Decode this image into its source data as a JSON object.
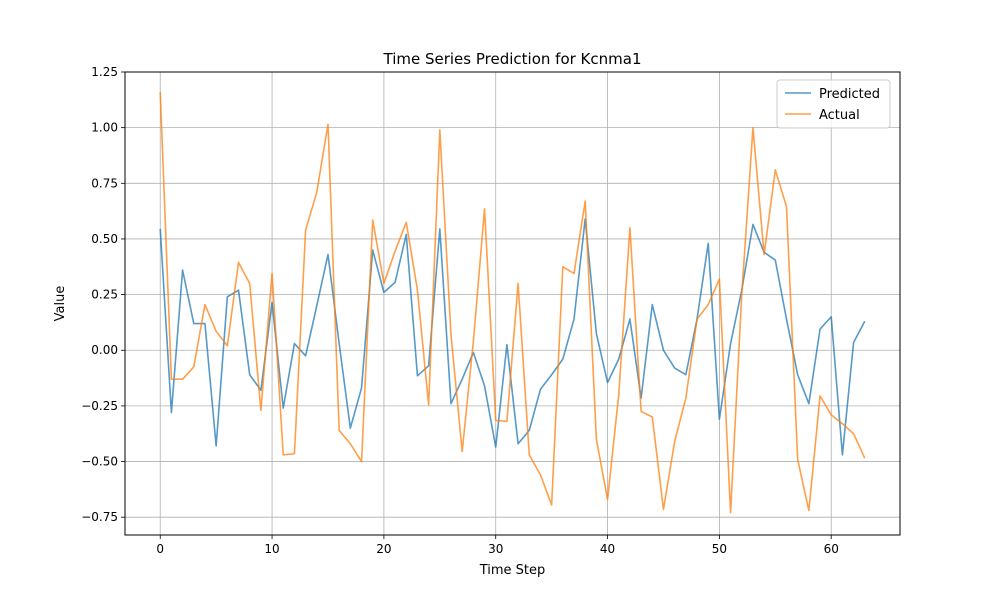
{
  "chart_data": {
    "type": "line",
    "title": "Time Series Prediction for Kcnma1",
    "xlabel": "Time Step",
    "ylabel": "Value",
    "xlim": [
      -3.15,
      66.15
    ],
    "ylim": [
      -0.83,
      1.25
    ],
    "xticks": [
      0,
      10,
      20,
      30,
      40,
      50,
      60
    ],
    "yticks": [
      -0.75,
      -0.5,
      -0.25,
      0.0,
      0.25,
      0.5,
      0.75,
      1.0,
      1.25
    ],
    "ytick_labels": [
      "−0.75",
      "−0.50",
      "−0.25",
      "0.00",
      "0.25",
      "0.50",
      "0.75",
      "1.00",
      "1.25"
    ],
    "grid": true,
    "legend": "top-right",
    "series": [
      {
        "name": "Predicted",
        "color": "#1f77b4",
        "values": [
          0.545,
          -0.28,
          0.36,
          0.12,
          0.12,
          -0.43,
          0.24,
          0.27,
          -0.11,
          -0.18,
          0.215,
          -0.26,
          0.03,
          -0.025,
          0.2,
          0.43,
          0.03,
          -0.35,
          -0.17,
          0.45,
          0.26,
          0.305,
          0.52,
          -0.115,
          -0.07,
          0.545,
          -0.24,
          -0.13,
          -0.01,
          -0.16,
          -0.435,
          0.025,
          -0.42,
          -0.36,
          -0.175,
          -0.11,
          -0.04,
          0.14,
          0.59,
          0.075,
          -0.145,
          -0.04,
          0.14,
          -0.215,
          0.205,
          0.0,
          -0.08,
          -0.11,
          0.14,
          0.48,
          -0.31,
          0.03,
          0.27,
          0.565,
          0.44,
          0.405,
          0.14,
          -0.11,
          -0.24,
          0.095,
          0.15,
          -0.47,
          0.035,
          0.13
        ]
      },
      {
        "name": "Actual",
        "color": "#ff7f0e",
        "values": [
          1.16,
          -0.13,
          -0.13,
          -0.075,
          0.205,
          0.085,
          0.02,
          0.395,
          0.3,
          -0.27,
          0.345,
          -0.47,
          -0.465,
          0.54,
          0.71,
          1.015,
          -0.36,
          -0.42,
          -0.5,
          0.585,
          0.3,
          0.445,
          0.575,
          0.27,
          -0.245,
          0.99,
          0.07,
          -0.455,
          0.04,
          0.635,
          -0.315,
          -0.32,
          0.3,
          -0.47,
          -0.56,
          -0.695,
          0.375,
          0.345,
          0.67,
          -0.4,
          -0.67,
          -0.2,
          0.55,
          -0.275,
          -0.3,
          -0.715,
          -0.41,
          -0.215,
          0.14,
          0.205,
          0.32,
          -0.73,
          0.25,
          1.0,
          0.43,
          0.81,
          0.645,
          -0.49,
          -0.72,
          -0.205,
          -0.29,
          -0.33,
          -0.375,
          -0.485
        ]
      }
    ]
  }
}
